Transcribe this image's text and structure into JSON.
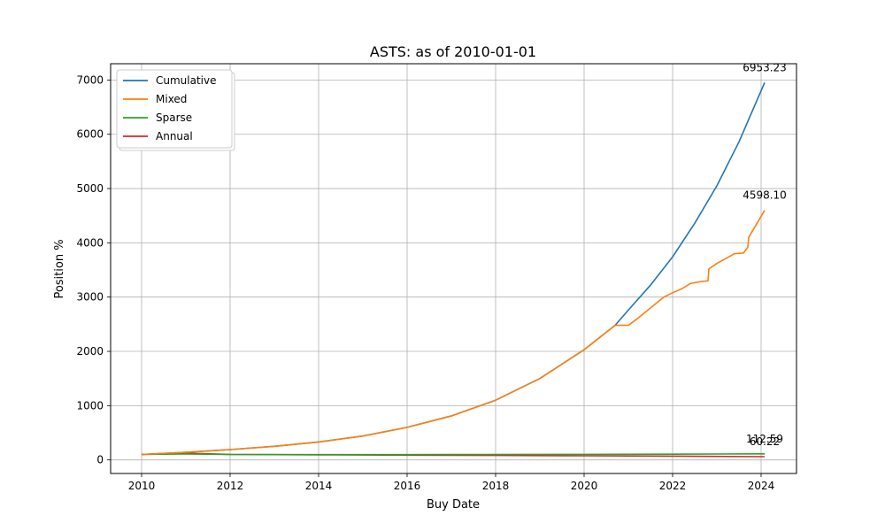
{
  "chart_data": {
    "type": "line",
    "title": "ASTS: as of 2010-01-01",
    "xlabel": "Buy Date",
    "ylabel": "Position %",
    "xlim": [
      2009.3,
      2024.8
    ],
    "ylim": [
      -250,
      7300
    ],
    "x_ticks": [
      2010,
      2012,
      2014,
      2016,
      2018,
      2020,
      2022,
      2024
    ],
    "y_ticks": [
      0,
      1000,
      2000,
      3000,
      4000,
      5000,
      6000,
      7000
    ],
    "grid": true,
    "legend_position": "top-left",
    "series": [
      {
        "name": "Cumulative",
        "color": "#1f77b4",
        "x": [
          2010,
          2011,
          2012,
          2013,
          2014,
          2015,
          2016,
          2017,
          2018,
          2019,
          2020,
          2020.7,
          2021,
          2021.5,
          2022,
          2022.5,
          2023,
          2023.5,
          2024.08
        ],
        "y": [
          100,
          140,
          190,
          250,
          330,
          440,
          600,
          810,
          1100,
          1500,
          2030,
          2480,
          2760,
          3220,
          3740,
          4360,
          5050,
          5860,
          6953.23
        ],
        "end_label": "6953.23"
      },
      {
        "name": "Mixed",
        "color": "#ff7f0e",
        "x": [
          2010,
          2011,
          2012,
          2013,
          2014,
          2015,
          2016,
          2017,
          2018,
          2019,
          2020,
          2020.7,
          2021.0,
          2021.2,
          2021.5,
          2021.8,
          2022.0,
          2022.2,
          2022.4,
          2022.6,
          2022.8,
          2022.82,
          2023.0,
          2023.2,
          2023.4,
          2023.6,
          2023.7,
          2023.72,
          2024.08
        ],
        "y": [
          100,
          140,
          190,
          250,
          330,
          440,
          600,
          810,
          1100,
          1500,
          2030,
          2480,
          2480,
          2600,
          2800,
          3000,
          3080,
          3150,
          3250,
          3280,
          3300,
          3520,
          3620,
          3710,
          3800,
          3810,
          3920,
          4100,
          4598.1
        ],
        "end_label": "4598.10"
      },
      {
        "name": "Sparse",
        "color": "#2ca02c",
        "x": [
          2010,
          2011,
          2012,
          2014,
          2016,
          2018,
          2020,
          2022,
          2023,
          2024.08
        ],
        "y": [
          100,
          108,
          100,
          98,
          98,
          100,
          102,
          105,
          108,
          112.59
        ],
        "end_label": "112.59"
      },
      {
        "name": "Annual",
        "color": "#d62728",
        "x": [
          2010,
          2011,
          2012,
          2014,
          2016,
          2018,
          2020,
          2022,
          2024.08
        ],
        "y": [
          100,
          125,
          100,
          94,
          88,
          82,
          76,
          70,
          60.22
        ],
        "end_label": "60.22"
      }
    ]
  }
}
